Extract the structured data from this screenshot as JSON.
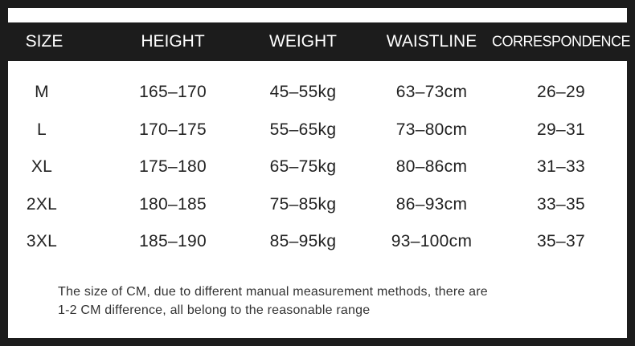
{
  "table": {
    "header": [
      "SIZE",
      "HEIGHT",
      "WEIGHT",
      "WAISTLINE",
      "CORRESPONDENCE"
    ],
    "rows": [
      [
        "M",
        "165–170",
        "45–55kg",
        "63–73cm",
        "26–29"
      ],
      [
        "L",
        "170–175",
        "55–65kg",
        "73–80cm",
        "29–31"
      ],
      [
        "XL",
        "175–180",
        "65–75kg",
        "80–86cm",
        "31–33"
      ],
      [
        "2XL",
        "180–185",
        "75–85kg",
        "86–93cm",
        "33–35"
      ],
      [
        "3XL",
        "185–190",
        "85–95kg",
        "93–100cm",
        "35–37"
      ]
    ]
  },
  "note": [
    "The size of CM, due to different manual measurement methods, there are",
    "1-2 CM difference, all belong to the reasonable range"
  ]
}
